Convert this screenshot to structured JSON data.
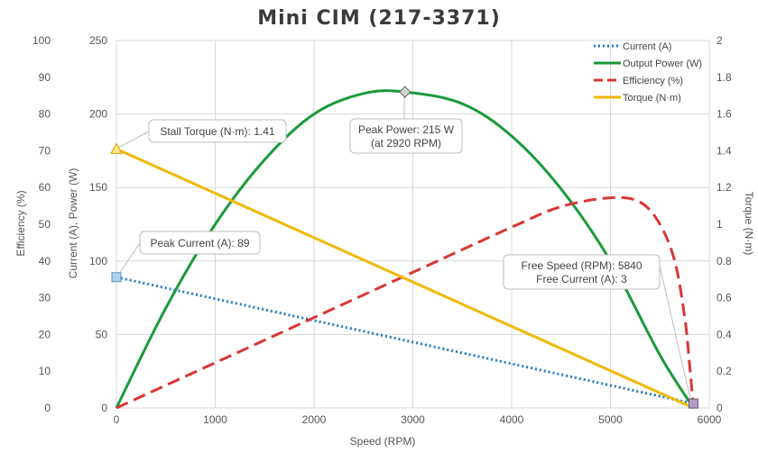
{
  "chart_data": {
    "type": "line",
    "title": "Mini CIM (217-3371)",
    "xlabel": "Speed (RPM)",
    "xlim": [
      0,
      6000
    ],
    "x_ticks": [
      "0",
      "1000",
      "2000",
      "3000",
      "4000",
      "5000",
      "6000"
    ],
    "ylabel_left_outer": "Efficiency (%)",
    "ylim_left_outer": [
      0,
      100
    ],
    "y_ticks_left_outer": [
      "0",
      "10",
      "20",
      "30",
      "40",
      "50",
      "60",
      "70",
      "80",
      "90",
      "100"
    ],
    "ylabel_left_inner": "Current (A), Power (W)",
    "ylim_left_inner": [
      0,
      250
    ],
    "y_ticks_left_inner": [
      "0",
      "50",
      "100",
      "150",
      "200",
      "250"
    ],
    "ylabel_right": "Torque (N·m)",
    "ylim_right": [
      0,
      2
    ],
    "y_ticks_right": [
      "0",
      "0.2",
      "0.4",
      "0.6",
      "0.8",
      "1",
      "1.2",
      "1.4",
      "1.6",
      "1.8",
      "2"
    ],
    "grid": true,
    "legend_position": "top-right",
    "series": [
      {
        "name": "Current (A)",
        "axis": "inner",
        "color": "#1f7bc8",
        "style": "dotted",
        "x": [
          0,
          5840
        ],
        "y": [
          89,
          3
        ]
      },
      {
        "name": "Output Power (W)",
        "axis": "inner",
        "color": "#1a9a3a",
        "style": "solid",
        "x": [
          0,
          500,
          1000,
          1500,
          2000,
          2500,
          2920,
          3500,
          4000,
          4500,
          5000,
          5500,
          5840
        ],
        "y": [
          0,
          68,
          125,
          169,
          200,
          214,
          215,
          207,
          185,
          149,
          100,
          36,
          0
        ]
      },
      {
        "name": "Efficiency (%)",
        "axis": "outer",
        "color": "#d93636",
        "style": "dashed",
        "x": [
          0,
          1000,
          2000,
          3000,
          4000,
          4500,
          5000,
          5300,
          5500,
          5650,
          5750,
          5800,
          5840
        ],
        "y": [
          0,
          12.3,
          24.6,
          36.9,
          49.2,
          54.8,
          57.2,
          56.0,
          50.0,
          40.0,
          25.0,
          12.0,
          0
        ]
      },
      {
        "name": "Torque (N·m)",
        "axis": "right",
        "color": "#f2b705",
        "style": "solid",
        "x": [
          0,
          5840
        ],
        "y": [
          1.41,
          0
        ]
      }
    ],
    "annotations": [
      {
        "text": "Stall Torque (N·m): 1.41",
        "x": 0,
        "y": 1.41,
        "axis": "right",
        "marker": "triangle",
        "marker_color": "#f2b705"
      },
      {
        "text": "Peak Current (A): 89",
        "x": 0,
        "y": 89,
        "axis": "inner",
        "marker": "square",
        "marker_color": "#1f7bc8"
      },
      {
        "text": "Peak Power: 215 W",
        "text2": "(at 2920 RPM)",
        "x": 2920,
        "y": 215,
        "axis": "inner",
        "marker": "diamond",
        "marker_color": "#1a9a3a"
      },
      {
        "text": "Free Speed (RPM): 5840",
        "text2": "Free Current (A): 3",
        "x": 5840,
        "y": 3,
        "axis": "inner",
        "marker": "square",
        "marker_color": "#8a5a9a"
      }
    ]
  }
}
